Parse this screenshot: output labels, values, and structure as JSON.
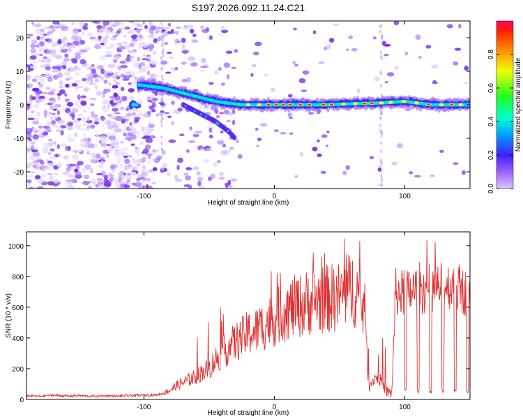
{
  "title": "S197.2026.092.11.24.C21",
  "colors": {
    "snr_line": "#e03030",
    "axis": "#000000",
    "background": "#ffffff"
  },
  "chart_data": [
    {
      "type": "heatmap",
      "name": "spectrogram",
      "xlabel": "Height of straight line (km)",
      "ylabel": "Frequency (Hz)",
      "xlim": [
        -190,
        150
      ],
      "ylim": [
        -25,
        25
      ],
      "xticks": [
        -100,
        0,
        100
      ],
      "yticks": [
        -20,
        -10,
        0,
        10,
        20
      ],
      "xtick_labels": [
        "-100",
        "0",
        "100"
      ],
      "ytick_labels": [
        "-20",
        "-10",
        "0",
        "10",
        "20"
      ],
      "grid": false,
      "ridge": [
        [
          -105,
          6
        ],
        [
          -95,
          5.5
        ],
        [
          -85,
          5
        ],
        [
          -75,
          4
        ],
        [
          -65,
          3
        ],
        [
          -55,
          2
        ],
        [
          -45,
          1
        ],
        [
          -35,
          0.5
        ],
        [
          -25,
          0
        ],
        [
          -15,
          0
        ],
        [
          0,
          0
        ],
        [
          20,
          0
        ],
        [
          40,
          0
        ],
        [
          60,
          0.3
        ],
        [
          80,
          0.5
        ],
        [
          100,
          1
        ],
        [
          120,
          0
        ],
        [
          150,
          0
        ]
      ],
      "secondary_branch": [
        [
          -70,
          0
        ],
        [
          -55,
          -3
        ],
        [
          -45,
          -5
        ],
        [
          -35,
          -8
        ],
        [
          -30,
          -10
        ]
      ],
      "colorbar": {
        "label": "Normalized spectral amplitude",
        "range": [
          0,
          1
        ],
        "ticks": [
          0.0,
          0.2,
          0.4,
          0.6,
          0.8
        ],
        "tick_labels": [
          "0.0",
          "0.2",
          "0.4",
          "0.6",
          "0.8"
        ],
        "colormap": [
          "#f4f0f8",
          "#c8a8f0",
          "#8030e0",
          "#3020e0",
          "#00c8ff",
          "#20e060",
          "#f0f020",
          "#ff8000",
          "#ff2020",
          "#ff0080"
        ]
      }
    },
    {
      "type": "line",
      "name": "snr",
      "xlabel": "Height of straight line (km)",
      "ylabel": "SNR (10 * v/v)",
      "xlim": [
        -190,
        150
      ],
      "ylim": [
        0,
        1090
      ],
      "xticks": [
        -100,
        0,
        100
      ],
      "yticks": [
        0,
        200,
        400,
        600,
        800,
        1000
      ],
      "xtick_labels": [
        "-100",
        "0",
        "100"
      ],
      "ytick_labels": [
        "0",
        "200",
        "400",
        "600",
        "800",
        "1000"
      ],
      "grid": false,
      "series": [
        {
          "name": "SNR",
          "points": [
            [
              -190,
              25
            ],
            [
              -180,
              20
            ],
            [
              -170,
              28
            ],
            [
              -160,
              22
            ],
            [
              -150,
              25
            ],
            [
              -140,
              20
            ],
            [
              -130,
              24
            ],
            [
              -120,
              22
            ],
            [
              -110,
              25
            ],
            [
              -100,
              28
            ],
            [
              -90,
              30
            ],
            [
              -85,
              40
            ],
            [
              -80,
              60
            ],
            [
              -75,
              90
            ],
            [
              -70,
              110
            ],
            [
              -65,
              130
            ],
            [
              -60,
              150
            ],
            [
              -55,
              180
            ],
            [
              -50,
              200
            ],
            [
              -45,
              260
            ],
            [
              -40,
              300
            ],
            [
              -35,
              340
            ],
            [
              -30,
              370
            ],
            [
              -25,
              400
            ],
            [
              -20,
              430
            ],
            [
              -15,
              440
            ],
            [
              -10,
              470
            ],
            [
              -5,
              500
            ],
            [
              0,
              520
            ],
            [
              5,
              560
            ],
            [
              10,
              580
            ],
            [
              15,
              600
            ],
            [
              20,
              610
            ],
            [
              25,
              630
            ],
            [
              30,
              640
            ],
            [
              35,
              650
            ],
            [
              40,
              655
            ],
            [
              45,
              660
            ],
            [
              50,
              670
            ],
            [
              55,
              700
            ],
            [
              60,
              720
            ],
            [
              65,
              680
            ],
            [
              70,
              540
            ],
            [
              72,
              80
            ],
            [
              78,
              150
            ],
            [
              82,
              120
            ],
            [
              86,
              50
            ],
            [
              90,
              40
            ],
            [
              93,
              700
            ],
            [
              100,
              680
            ],
            [
              105,
              700
            ],
            [
              110,
              720
            ],
            [
              115,
              710
            ],
            [
              120,
              730
            ],
            [
              125,
              720
            ],
            [
              130,
              750
            ],
            [
              135,
              740
            ],
            [
              140,
              720
            ],
            [
              145,
              700
            ],
            [
              150,
              690
            ]
          ]
        }
      ]
    }
  ]
}
